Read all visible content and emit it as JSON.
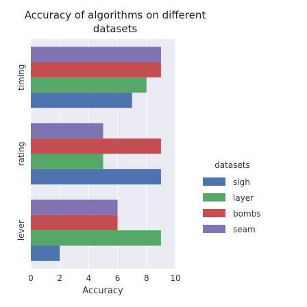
{
  "chart_data": {
    "type": "bar",
    "orientation": "horizontal",
    "title_lines": [
      "Accuracy of algorithms on different",
      "datasets"
    ],
    "xlabel": "Accuracy",
    "ylabel": "",
    "xlim": [
      0,
      10
    ],
    "xticks": [
      "0",
      "2",
      "4",
      "6",
      "8",
      "10"
    ],
    "categories": [
      "lever",
      "rating",
      "timing"
    ],
    "legend_title": "datasets",
    "legend_position": "right",
    "grid": true,
    "background": "#eaeaf2",
    "series": [
      {
        "name": "sigh",
        "color": "#4c72b0",
        "values": [
          2,
          9,
          7
        ]
      },
      {
        "name": "layer",
        "color": "#55a868",
        "values": [
          9,
          5,
          8
        ]
      },
      {
        "name": "bombs",
        "color": "#c44e52",
        "values": [
          6,
          9,
          9
        ]
      },
      {
        "name": "seam",
        "color": "#8172b2",
        "values": [
          6,
          5,
          9
        ]
      }
    ]
  }
}
